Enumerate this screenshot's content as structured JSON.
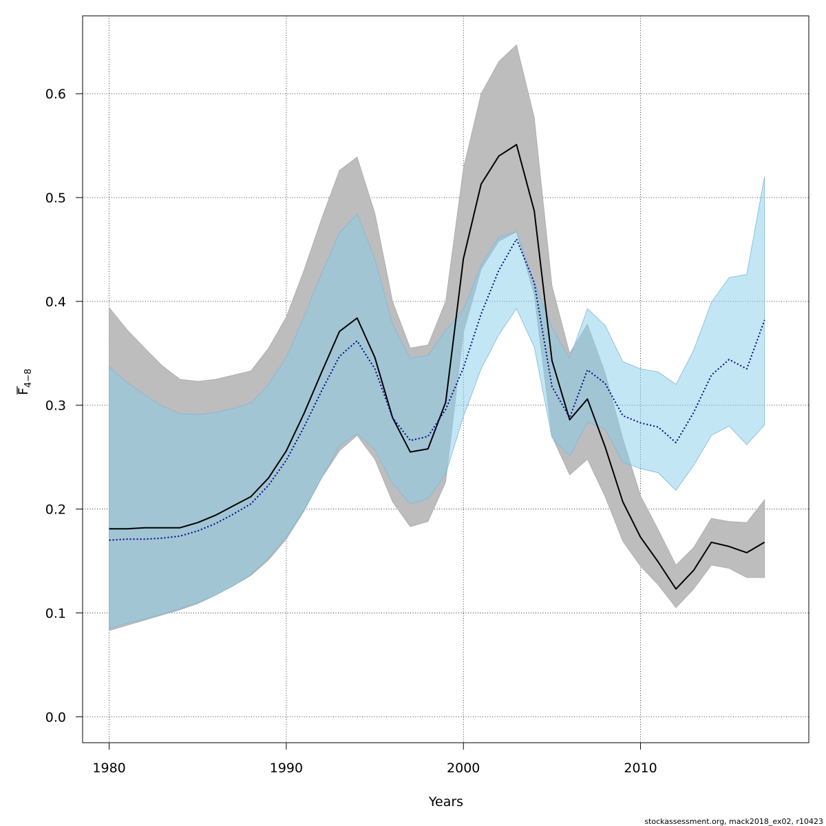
{
  "chart_data": {
    "type": "line",
    "xlabel": "Years",
    "ylabel_main": "F",
    "ylabel_sub": "4−8",
    "xlim": [
      1978.5,
      2019.5
    ],
    "ylim": [
      -0.025,
      0.675
    ],
    "xticks": [
      1980,
      1990,
      2000,
      2010
    ],
    "yticks": [
      0.0,
      0.1,
      0.2,
      0.3,
      0.4,
      0.5,
      0.6
    ],
    "ytick_labels": [
      "0.0",
      "0.1",
      "0.2",
      "0.3",
      "0.4",
      "0.5",
      "0.6"
    ],
    "grid": true,
    "x": [
      1980,
      1981,
      1982,
      1983,
      1984,
      1985,
      1986,
      1987,
      1988,
      1989,
      1990,
      1991,
      1992,
      1993,
      1994,
      1995,
      1996,
      1997,
      1998,
      1999,
      2000,
      2001,
      2002,
      2003,
      2004,
      2005,
      2006,
      2007,
      2008,
      2009,
      2010,
      2011,
      2012,
      2013,
      2014,
      2015,
      2016,
      2017
    ],
    "series": [
      {
        "color": "#000000",
        "band_color": "#bdbdbd",
        "line_style": "solid",
        "estimate": [
          0.181,
          0.181,
          0.182,
          0.182,
          0.182,
          0.187,
          0.194,
          0.203,
          0.212,
          0.23,
          0.256,
          0.292,
          0.332,
          0.371,
          0.384,
          0.346,
          0.288,
          0.255,
          0.258,
          0.303,
          0.441,
          0.513,
          0.54,
          0.551,
          0.487,
          0.343,
          0.286,
          0.306,
          0.26,
          0.207,
          0.173,
          0.149,
          0.123,
          0.141,
          0.168,
          0.164,
          0.158,
          0.168
        ],
        "upper": [
          0.394,
          0.373,
          0.355,
          0.338,
          0.325,
          0.323,
          0.325,
          0.329,
          0.333,
          0.355,
          0.385,
          0.43,
          0.48,
          0.526,
          0.539,
          0.485,
          0.4,
          0.355,
          0.358,
          0.4,
          0.528,
          0.6,
          0.631,
          0.647,
          0.577,
          0.415,
          0.35,
          0.378,
          0.331,
          0.268,
          0.213,
          0.18,
          0.146,
          0.163,
          0.191,
          0.188,
          0.187,
          0.209
        ],
        "lower": [
          0.083,
          0.088,
          0.093,
          0.098,
          0.103,
          0.109,
          0.117,
          0.126,
          0.136,
          0.151,
          0.171,
          0.198,
          0.23,
          0.256,
          0.271,
          0.248,
          0.207,
          0.183,
          0.188,
          0.226,
          0.37,
          0.431,
          0.458,
          0.467,
          0.406,
          0.27,
          0.233,
          0.248,
          0.212,
          0.169,
          0.145,
          0.127,
          0.105,
          0.123,
          0.146,
          0.143,
          0.134,
          0.134
        ]
      },
      {
        "color": "#00008b",
        "band_color": "#87ceeb",
        "line_style": "dotted",
        "estimate": [
          0.17,
          0.171,
          0.171,
          0.172,
          0.174,
          0.179,
          0.186,
          0.195,
          0.205,
          0.223,
          0.247,
          0.279,
          0.314,
          0.347,
          0.362,
          0.335,
          0.288,
          0.266,
          0.27,
          0.296,
          0.336,
          0.388,
          0.43,
          0.46,
          0.418,
          0.318,
          0.288,
          0.334,
          0.321,
          0.29,
          0.283,
          0.279,
          0.264,
          0.293,
          0.329,
          0.344,
          0.335,
          0.382
        ],
        "upper": [
          0.337,
          0.322,
          0.31,
          0.299,
          0.292,
          0.291,
          0.293,
          0.297,
          0.302,
          0.32,
          0.346,
          0.385,
          0.427,
          0.466,
          0.484,
          0.441,
          0.378,
          0.345,
          0.348,
          0.372,
          0.392,
          0.435,
          0.462,
          0.467,
          0.418,
          0.375,
          0.345,
          0.393,
          0.377,
          0.342,
          0.335,
          0.332,
          0.32,
          0.353,
          0.399,
          0.423,
          0.426,
          0.52
        ],
        "lower": [
          0.085,
          0.09,
          0.094,
          0.099,
          0.104,
          0.11,
          0.117,
          0.126,
          0.137,
          0.153,
          0.173,
          0.199,
          0.23,
          0.261,
          0.273,
          0.257,
          0.225,
          0.205,
          0.21,
          0.234,
          0.289,
          0.335,
          0.368,
          0.393,
          0.356,
          0.269,
          0.251,
          0.284,
          0.277,
          0.245,
          0.239,
          0.235,
          0.218,
          0.242,
          0.271,
          0.28,
          0.262,
          0.281
        ]
      }
    ]
  },
  "footer": "stockassessment.org, mack2018_ex02, r10423"
}
